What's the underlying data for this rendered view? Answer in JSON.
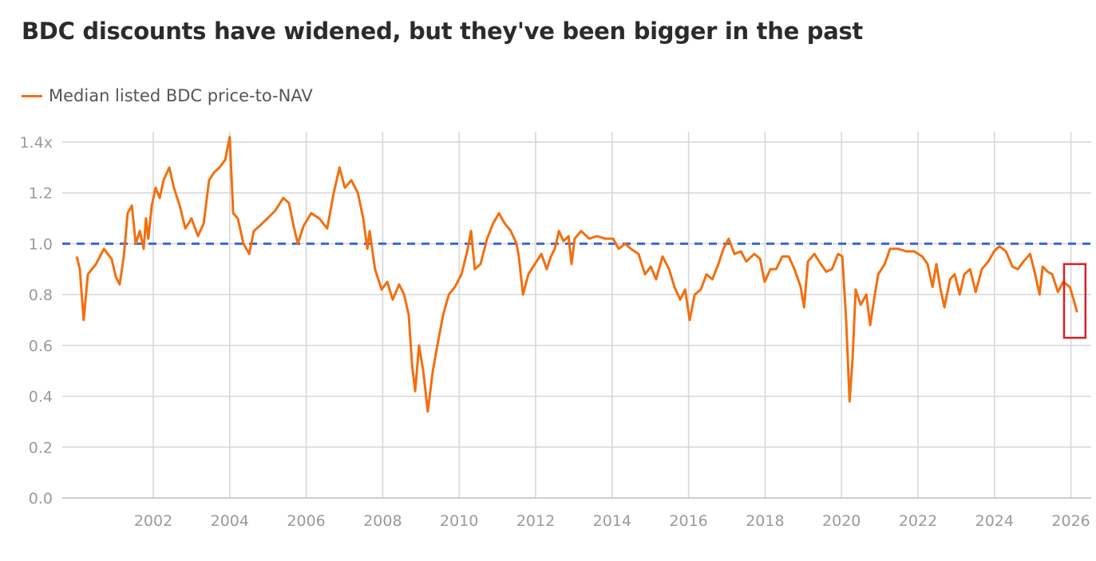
{
  "chart_data": {
    "type": "line",
    "title": "BDC discounts have widened, but they've been bigger in the past",
    "xlabel": "",
    "ylabel": "",
    "xlim": [
      1999.62,
      2026.53
    ],
    "ylim": [
      0,
      1.4
    ],
    "x_ticks": [
      "2002",
      "2004",
      "2006",
      "2008",
      "2010",
      "2012",
      "2014",
      "2016",
      "2018",
      "2020",
      "2022",
      "2024",
      "2026"
    ],
    "y_ticks": [
      {
        "value": 0.0,
        "label": "0.0"
      },
      {
        "value": 0.2,
        "label": "0.2"
      },
      {
        "value": 0.4,
        "label": "0.4"
      },
      {
        "value": 0.6,
        "label": "0.6"
      },
      {
        "value": 0.8,
        "label": "0.8"
      },
      {
        "value": 1.0,
        "label": "1.0"
      },
      {
        "value": 1.2,
        "label": "1.2"
      },
      {
        "value": 1.4,
        "label": "1.4x"
      }
    ],
    "grid": true,
    "legend_position": "top-left",
    "reference_line": {
      "value": 1.0,
      "style": "dashed",
      "color": "#3a68d8"
    },
    "highlight_box": {
      "x": [
        2025.82,
        2026.38
      ],
      "y": [
        0.63,
        0.92
      ],
      "color": "#d91f2a"
    },
    "series": [
      {
        "name": "Median listed BDC price-to-NAV",
        "color": "#f26f0f",
        "x": [
          2000.0,
          2000.08,
          2000.18,
          2000.29,
          2000.5,
          2000.71,
          2000.91,
          2001.02,
          2001.12,
          2001.23,
          2001.33,
          2001.44,
          2001.54,
          2001.65,
          2001.75,
          2001.81,
          2001.87,
          2001.96,
          2002.06,
          2002.17,
          2002.27,
          2002.42,
          2002.54,
          2002.69,
          2002.84,
          2003.0,
          2003.17,
          2003.32,
          2003.46,
          2003.59,
          2003.73,
          2003.88,
          2004.0,
          2004.09,
          2004.21,
          2004.36,
          2004.51,
          2004.63,
          2004.78,
          2004.99,
          2005.19,
          2005.4,
          2005.55,
          2005.67,
          2005.78,
          2005.93,
          2006.13,
          2006.34,
          2006.55,
          2006.72,
          2006.87,
          2007.01,
          2007.18,
          2007.35,
          2007.49,
          2007.6,
          2007.66,
          2007.8,
          2007.97,
          2008.12,
          2008.26,
          2008.43,
          2008.56,
          2008.68,
          2008.77,
          2008.85,
          2008.95,
          2009.06,
          2009.18,
          2009.31,
          2009.43,
          2009.58,
          2009.73,
          2009.89,
          2010.06,
          2010.21,
          2010.31,
          2010.41,
          2010.56,
          2010.73,
          2010.89,
          2011.04,
          2011.19,
          2011.35,
          2011.5,
          2011.56,
          2011.67,
          2011.81,
          2011.98,
          2012.15,
          2012.29,
          2012.4,
          2012.5,
          2012.61,
          2012.73,
          2012.86,
          2012.94,
          2013.02,
          2013.19,
          2013.4,
          2013.61,
          2013.82,
          2014.03,
          2014.17,
          2014.34,
          2014.49,
          2014.69,
          2014.86,
          2015.01,
          2015.15,
          2015.32,
          2015.49,
          2015.63,
          2015.78,
          2015.91,
          2016.03,
          2016.16,
          2016.32,
          2016.47,
          2016.62,
          2016.78,
          2016.91,
          2017.05,
          2017.2,
          2017.37,
          2017.51,
          2017.72,
          2017.87,
          2017.99,
          2018.14,
          2018.29,
          2018.45,
          2018.62,
          2018.77,
          2018.93,
          2019.02,
          2019.12,
          2019.29,
          2019.46,
          2019.6,
          2019.75,
          2019.91,
          2020.02,
          2020.12,
          2020.21,
          2020.29,
          2020.37,
          2020.5,
          2020.65,
          2020.75,
          2020.85,
          2020.96,
          2021.13,
          2021.27,
          2021.48,
          2021.69,
          2021.9,
          2022.11,
          2022.25,
          2022.38,
          2022.48,
          2022.59,
          2022.69,
          2022.84,
          2022.96,
          2023.09,
          2023.21,
          2023.36,
          2023.51,
          2023.67,
          2023.84,
          2023.99,
          2024.13,
          2024.3,
          2024.47,
          2024.61,
          2024.76,
          2024.93,
          2025.05,
          2025.18,
          2025.26,
          2025.39,
          2025.51,
          2025.66,
          2025.8,
          2025.97,
          2026.07,
          2026.16
        ],
        "y": [
          0.95,
          0.9,
          0.7,
          0.88,
          0.92,
          0.98,
          0.94,
          0.87,
          0.84,
          0.95,
          1.12,
          1.15,
          1.0,
          1.05,
          0.98,
          1.1,
          1.02,
          1.15,
          1.22,
          1.18,
          1.25,
          1.3,
          1.22,
          1.15,
          1.06,
          1.1,
          1.03,
          1.08,
          1.25,
          1.28,
          1.3,
          1.33,
          1.42,
          1.12,
          1.1,
          1.0,
          0.96,
          1.05,
          1.07,
          1.1,
          1.13,
          1.18,
          1.16,
          1.07,
          1.0,
          1.07,
          1.12,
          1.1,
          1.06,
          1.2,
          1.3,
          1.22,
          1.25,
          1.2,
          1.1,
          0.98,
          1.05,
          0.9,
          0.82,
          0.85,
          0.78,
          0.84,
          0.8,
          0.72,
          0.52,
          0.42,
          0.6,
          0.5,
          0.34,
          0.5,
          0.6,
          0.72,
          0.8,
          0.83,
          0.88,
          0.97,
          1.05,
          0.9,
          0.92,
          1.02,
          1.08,
          1.12,
          1.08,
          1.05,
          1.0,
          0.95,
          0.8,
          0.88,
          0.92,
          0.96,
          0.9,
          0.95,
          0.98,
          1.05,
          1.01,
          1.03,
          0.92,
          1.02,
          1.05,
          1.02,
          1.03,
          1.02,
          1.02,
          0.98,
          1.0,
          0.98,
          0.96,
          0.88,
          0.91,
          0.86,
          0.95,
          0.9,
          0.83,
          0.78,
          0.82,
          0.7,
          0.8,
          0.82,
          0.88,
          0.86,
          0.92,
          0.98,
          1.02,
          0.96,
          0.97,
          0.93,
          0.96,
          0.94,
          0.85,
          0.9,
          0.9,
          0.95,
          0.95,
          0.9,
          0.83,
          0.75,
          0.93,
          0.96,
          0.92,
          0.89,
          0.9,
          0.96,
          0.95,
          0.7,
          0.38,
          0.55,
          0.82,
          0.76,
          0.8,
          0.68,
          0.78,
          0.88,
          0.92,
          0.98,
          0.98,
          0.97,
          0.97,
          0.95,
          0.92,
          0.83,
          0.92,
          0.82,
          0.75,
          0.86,
          0.88,
          0.8,
          0.88,
          0.9,
          0.81,
          0.9,
          0.93,
          0.97,
          0.99,
          0.97,
          0.91,
          0.9,
          0.93,
          0.96,
          0.89,
          0.8,
          0.91,
          0.89,
          0.88,
          0.81,
          0.85,
          0.83,
          0.78,
          0.73
        ]
      }
    ]
  }
}
